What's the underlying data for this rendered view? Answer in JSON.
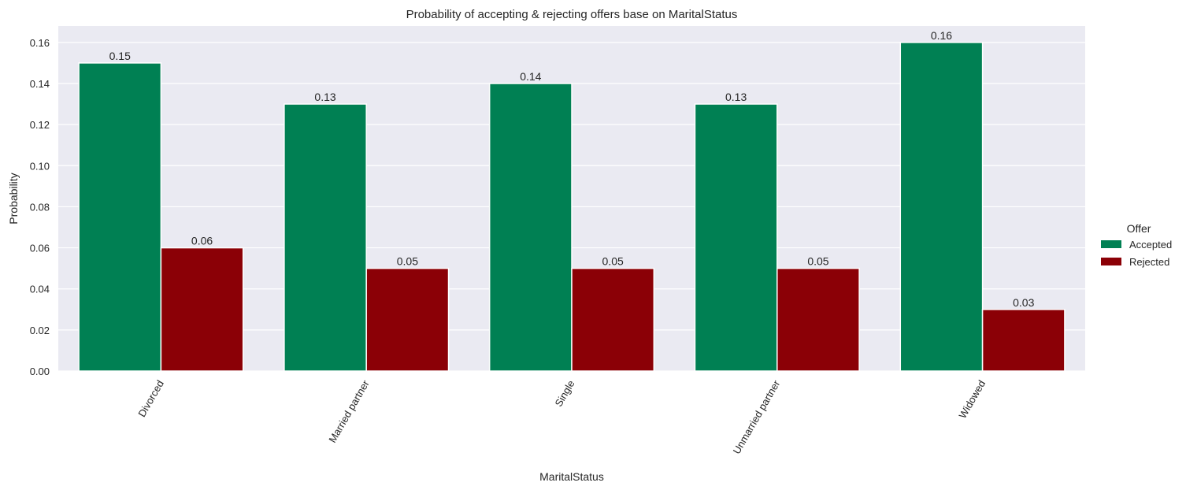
{
  "chart_data": {
    "type": "bar",
    "title": "Probability of accepting & rejecting offers base on MaritalStatus",
    "xlabel": "MaritalStatus",
    "ylabel": "Probability",
    "categories": [
      "Divorced",
      "Married partner",
      "Single",
      "Unmarried partner",
      "Widowed"
    ],
    "series": [
      {
        "name": "Accepted",
        "color": "#008053",
        "values": [
          0.15,
          0.13,
          0.14,
          0.13,
          0.16
        ]
      },
      {
        "name": "Rejected",
        "color": "#8b0006",
        "values": [
          0.06,
          0.05,
          0.05,
          0.05,
          0.03
        ]
      }
    ],
    "data_labels": [
      [
        "0.15",
        "0.13",
        "0.14",
        "0.13",
        "0.16"
      ],
      [
        "0.06",
        "0.05",
        "0.05",
        "0.05",
        "0.03"
      ]
    ],
    "ylim": [
      0,
      0.168
    ],
    "yticks": [
      0.0,
      0.02,
      0.04,
      0.06,
      0.08,
      0.1,
      0.12,
      0.14,
      0.16
    ],
    "ytick_labels": [
      "0.00",
      "0.02",
      "0.04",
      "0.06",
      "0.08",
      "0.10",
      "0.12",
      "0.14",
      "0.16"
    ],
    "grid": true,
    "plot_background": "#eaeaf2",
    "grid_color": "#ffffff",
    "legend": {
      "title": "Offer",
      "placement": "right"
    }
  }
}
